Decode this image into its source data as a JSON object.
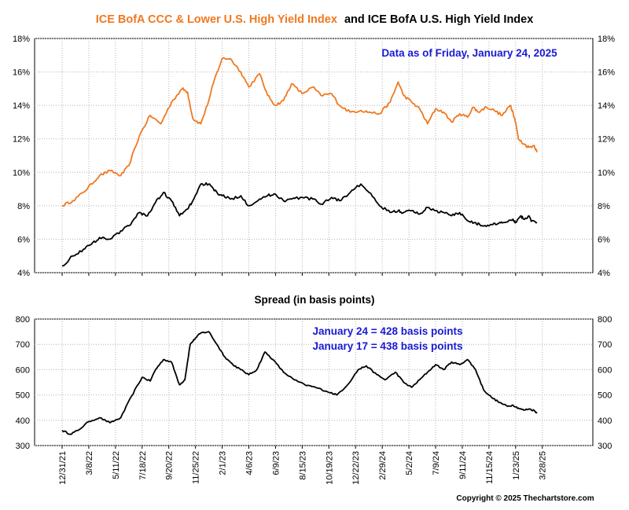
{
  "title": {
    "part1": "ICE BofA CCC & Lower U.S. High Yield Index",
    "part2": "and ICE BofA U.S. High Yield Index"
  },
  "colors": {
    "ccc_series": "#f07820",
    "hy_series": "#000000",
    "annotation": "#1a1ad4",
    "grid": "#b4b4b4"
  },
  "top_note": "Data as of Friday, January 24, 2025",
  "spread_title": "Spread (in basis points)",
  "spread_notes": [
    "January 24 = 428 basis points",
    "January 17 = 438 basis points"
  ],
  "copyright": "Copyright © 2025 Thechartstore.com",
  "chart_data": [
    {
      "type": "line",
      "title": "ICE BofA CCC & Lower U.S. High Yield Index and ICE BofA U.S. High Yield Index",
      "x_start": "12/31/21",
      "x_labels": [
        "12/31/21",
        "3/8/22",
        "5/11/22",
        "7/18/22",
        "9/20/22",
        "11/25/22",
        "2/1/23",
        "4/6/23",
        "6/9/23",
        "8/15/23",
        "10/19/23",
        "12/22/23",
        "2/29/24",
        "5/2/24",
        "7/9/24",
        "9/11/24",
        "11/15/24",
        "1/23/25",
        "3/28/25"
      ],
      "y_ticks": [
        "4%",
        "6%",
        "8%",
        "10%",
        "12%",
        "14%",
        "16%",
        "18%"
      ],
      "ylim": [
        4,
        18
      ],
      "grid": true,
      "series": [
        {
          "name": "ICE BofA CCC & Lower U.S. High Yield Index",
          "color": "#f07820",
          "x": [
            0,
            0.4,
            0.8,
            1.1,
            1.4,
            1.8,
            2.2,
            2.5,
            2.9,
            3.3,
            3.7,
            4.1,
            4.5,
            4.7,
            4.9,
            5.2,
            5.5,
            5.7,
            6.0,
            6.3,
            6.7,
            7.0,
            7.4,
            7.7,
            8.0,
            8.3,
            8.6,
            9.0,
            9.4,
            9.7,
            10.1,
            10.4,
            10.8,
            11.2,
            11.5,
            11.9,
            12.3,
            12.6,
            12.8,
            13.1,
            13.4,
            13.7,
            14.0,
            14.3,
            14.6,
            14.9,
            15.2,
            15.4,
            15.6,
            15.9,
            16.2,
            16.5,
            16.8,
            16.9,
            17.0,
            17.1,
            17.3,
            17.5,
            17.7,
            17.8
          ],
          "values": [
            8.0,
            8.3,
            8.8,
            9.3,
            9.8,
            10.1,
            9.8,
            10.4,
            12.2,
            13.4,
            12.9,
            14.2,
            15.0,
            14.8,
            13.2,
            12.9,
            14.3,
            15.5,
            16.8,
            16.8,
            16.0,
            15.1,
            15.9,
            14.6,
            14.0,
            14.3,
            15.3,
            14.7,
            15.1,
            14.6,
            14.7,
            14.0,
            13.6,
            13.7,
            13.6,
            13.5,
            14.2,
            15.4,
            14.6,
            14.2,
            13.8,
            12.9,
            13.8,
            13.6,
            13.0,
            13.5,
            13.3,
            13.9,
            13.6,
            13.9,
            13.7,
            13.4,
            14.0,
            13.6,
            13.0,
            12.0,
            11.7,
            11.5,
            11.6,
            11.2
          ]
        },
        {
          "name": "ICE BofA U.S. High Yield Index",
          "color": "#000000",
          "x": [
            0,
            0.4,
            0.8,
            1.1,
            1.4,
            1.8,
            2.2,
            2.5,
            2.9,
            3.2,
            3.5,
            3.8,
            4.1,
            4.4,
            4.7,
            4.9,
            5.2,
            5.5,
            5.7,
            6.0,
            6.3,
            6.7,
            7.0,
            7.4,
            7.7,
            8.0,
            8.3,
            8.6,
            9.0,
            9.4,
            9.7,
            10.1,
            10.4,
            10.8,
            11.2,
            11.5,
            11.9,
            12.3,
            12.6,
            12.8,
            13.1,
            13.4,
            13.7,
            14.0,
            14.3,
            14.6,
            14.9,
            15.2,
            15.5,
            15.7,
            16.0,
            16.4,
            16.6,
            16.9,
            17.0,
            17.2,
            17.3,
            17.5,
            17.6,
            17.8
          ],
          "values": [
            4.4,
            5.0,
            5.4,
            5.7,
            6.1,
            6.0,
            6.5,
            6.8,
            7.6,
            7.4,
            8.2,
            8.8,
            8.3,
            7.4,
            7.8,
            8.3,
            9.3,
            9.3,
            8.9,
            8.6,
            8.4,
            8.6,
            8.0,
            8.4,
            8.6,
            8.7,
            8.3,
            8.4,
            8.5,
            8.4,
            8.1,
            8.5,
            8.3,
            8.8,
            9.3,
            8.8,
            8.0,
            7.6,
            7.7,
            7.6,
            7.7,
            7.5,
            7.9,
            7.7,
            7.6,
            7.4,
            7.6,
            7.1,
            7.0,
            6.8,
            6.8,
            7.0,
            7.0,
            7.2,
            7.0,
            7.4,
            7.2,
            7.4,
            7.1,
            7.0
          ]
        }
      ]
    },
    {
      "type": "line",
      "title": "Spread (in basis points)",
      "x_labels": [
        "12/31/21",
        "3/8/22",
        "5/11/22",
        "7/18/22",
        "9/20/22",
        "11/25/22",
        "2/1/23",
        "4/6/23",
        "6/9/23",
        "8/15/23",
        "10/19/23",
        "12/22/23",
        "2/29/24",
        "5/2/24",
        "7/9/24",
        "9/11/24",
        "11/15/24",
        "1/23/25",
        "3/28/25"
      ],
      "y_ticks": [
        "300",
        "400",
        "500",
        "600",
        "700",
        "800"
      ],
      "ylim": [
        300,
        800
      ],
      "grid": true,
      "series": [
        {
          "name": "",
          "color": "#000000",
          "x": [
            0,
            0.3,
            0.6,
            1.0,
            1.4,
            1.8,
            2.2,
            2.6,
            3.0,
            3.3,
            3.5,
            3.8,
            4.1,
            4.4,
            4.6,
            4.8,
            5.0,
            5.2,
            5.5,
            5.8,
            6.1,
            6.4,
            6.7,
            7.0,
            7.3,
            7.6,
            7.9,
            8.3,
            8.7,
            9.1,
            9.5,
            9.9,
            10.3,
            10.7,
            11.1,
            11.4,
            11.8,
            12.1,
            12.5,
            12.8,
            13.1,
            13.4,
            13.7,
            14.0,
            14.3,
            14.6,
            14.9,
            15.2,
            15.5,
            15.8,
            16.1,
            16.4,
            16.7,
            16.9,
            17.1,
            17.3,
            17.5,
            17.7,
            17.8
          ],
          "values": [
            360,
            345,
            360,
            395,
            410,
            390,
            410,
            495,
            570,
            555,
            600,
            640,
            630,
            540,
            560,
            700,
            725,
            745,
            750,
            700,
            650,
            620,
            600,
            580,
            600,
            670,
            640,
            590,
            560,
            540,
            530,
            515,
            500,
            540,
            600,
            615,
            580,
            560,
            590,
            550,
            530,
            560,
            590,
            620,
            600,
            630,
            620,
            640,
            600,
            520,
            490,
            470,
            455,
            460,
            448,
            440,
            445,
            438,
            428
          ]
        }
      ]
    }
  ]
}
